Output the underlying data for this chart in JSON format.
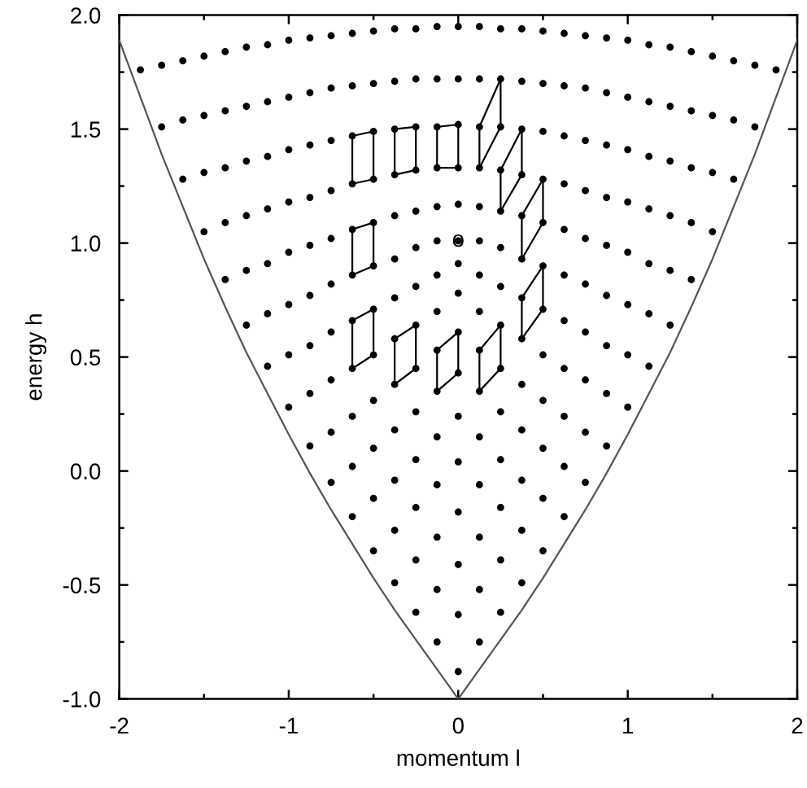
{
  "chart_data": {
    "type": "scatter",
    "xlabel": "momentum l",
    "ylabel": "energy h",
    "marker": "circle",
    "xlim": [
      -2,
      2
    ],
    "ylim": [
      -1,
      2
    ],
    "xticks": [
      -2,
      {
        "value": -1.5,
        "label": null
      },
      -1,
      {
        "value": -0.5,
        "label": null
      },
      0,
      {
        "value": 0.5,
        "label": null
      },
      1,
      {
        "value": 1.5,
        "label": null
      },
      2
    ],
    "yticks": [
      {
        "value": -1,
        "label": "-1.0"
      },
      {
        "value": -0.75,
        "label": null
      },
      -0.5,
      {
        "value": -0.25,
        "label": null
      },
      {
        "value": 0,
        "label": "0.0"
      },
      {
        "value": 0.25,
        "label": null
      },
      0.5,
      {
        "value": 0.75,
        "label": null
      },
      {
        "value": 1,
        "label": "1.0"
      },
      {
        "value": 1.25,
        "label": null
      },
      1.5,
      {
        "value": 1.75,
        "label": null
      },
      {
        "value": 2,
        "label": "2.0"
      }
    ],
    "annotations": [
      {
        "text": "o",
        "x": 0,
        "y": 1.01
      }
    ],
    "series": [
      {
        "type": "line",
        "color": "#555555",
        "marker": "none",
        "x": [
          -2,
          -1.875,
          -1.75,
          -1.625,
          -1.5,
          -1.375,
          -1.25,
          -1.125,
          -1,
          -0.875,
          -0.75,
          -0.625,
          -0.5,
          -0.375,
          -0.25,
          -0.125,
          0,
          0.125,
          0.25,
          0.375,
          0.5,
          0.625,
          0.75,
          0.875,
          1,
          1.125,
          1.25,
          1.375,
          1.5,
          1.625,
          1.75,
          1.875,
          2
        ],
        "values": [
          1.89,
          1.64,
          1.39,
          1.16,
          0.93,
          0.72,
          0.52,
          0.34,
          0.16,
          -0.01,
          -0.17,
          -0.32,
          -0.47,
          -0.61,
          -0.74,
          -0.87,
          -1.0,
          -0.87,
          -0.74,
          -0.61,
          -0.47,
          -0.32,
          -0.17,
          -0.01,
          0.16,
          0.34,
          0.52,
          0.72,
          0.93,
          1.16,
          1.39,
          1.64,
          1.89
        ]
      },
      {
        "color": "#000000",
        "x": [
          0
        ],
        "values": [
          -0.88
        ]
      },
      {
        "color": "#000000",
        "x": [
          -0.125,
          0,
          0.125
        ],
        "values": [
          -0.75,
          -0.63,
          -0.75
        ]
      },
      {
        "color": "#000000",
        "x": [
          -0.25,
          -0.125,
          0,
          0.125,
          0.25
        ],
        "values": [
          -0.62,
          -0.52,
          -0.41,
          -0.52,
          -0.62
        ]
      },
      {
        "color": "#000000",
        "x": [
          -0.375,
          -0.25,
          -0.125,
          0,
          0.125,
          0.25,
          0.375
        ],
        "values": [
          -0.49,
          -0.39,
          -0.29,
          -0.18,
          -0.29,
          -0.39,
          -0.49
        ]
      },
      {
        "color": "#000000",
        "x": [
          -0.5,
          -0.375,
          -0.25,
          -0.125,
          0,
          0.125,
          0.25,
          0.375,
          0.5
        ],
        "values": [
          -0.35,
          -0.26,
          -0.16,
          -0.06,
          0.04,
          -0.06,
          -0.16,
          -0.26,
          -0.35
        ]
      },
      {
        "color": "#000000",
        "x": [
          -0.625,
          -0.5,
          -0.375,
          -0.25,
          -0.125,
          0,
          0.125,
          0.25,
          0.375,
          0.5,
          0.625
        ],
        "values": [
          -0.2,
          -0.12,
          -0.04,
          0.05,
          0.15,
          0.24,
          0.15,
          0.05,
          -0.04,
          -0.12,
          -0.2
        ]
      },
      {
        "color": "#000000",
        "x": [
          -0.75,
          -0.625,
          -0.5,
          -0.375,
          -0.25,
          -0.125,
          0,
          0.125,
          0.25,
          0.375,
          0.5,
          0.625,
          0.75
        ],
        "values": [
          -0.05,
          0.02,
          0.1,
          0.18,
          0.26,
          0.35,
          0.43,
          0.35,
          0.26,
          0.18,
          0.1,
          0.02,
          -0.05
        ]
      },
      {
        "color": "#000000",
        "x": [
          -0.875,
          -0.75,
          -0.625,
          -0.5,
          -0.375,
          -0.25,
          -0.125,
          0,
          0.125,
          0.25,
          0.375,
          0.5,
          0.625,
          0.75,
          0.875
        ],
        "values": [
          0.11,
          0.17,
          0.24,
          0.31,
          0.38,
          0.45,
          0.53,
          0.61,
          0.53,
          0.45,
          0.38,
          0.31,
          0.24,
          0.17,
          0.11
        ]
      },
      {
        "color": "#000000",
        "x": [
          -1,
          -0.875,
          -0.75,
          -0.625,
          -0.5,
          -0.375,
          -0.25,
          -0.125,
          0,
          0.125,
          0.25,
          0.375,
          0.5,
          0.625,
          0.75,
          0.875,
          1
        ],
        "values": [
          0.28,
          0.34,
          0.4,
          0.45,
          0.51,
          0.58,
          0.64,
          0.7,
          0.78,
          0.7,
          0.64,
          0.58,
          0.51,
          0.45,
          0.4,
          0.34,
          0.28
        ]
      },
      {
        "color": "#000000",
        "x": [
          -1.125,
          -1,
          -0.875,
          -0.75,
          -0.625,
          -0.5,
          -0.375,
          -0.25,
          -0.125,
          0,
          0.125,
          0.25,
          0.375,
          0.5,
          0.625,
          0.75,
          0.875,
          1,
          1.125
        ],
        "values": [
          0.46,
          0.51,
          0.55,
          0.61,
          0.66,
          0.71,
          0.76,
          0.81,
          0.86,
          0.91,
          0.86,
          0.81,
          0.76,
          0.71,
          0.66,
          0.61,
          0.55,
          0.51,
          0.46
        ]
      },
      {
        "color": "#000000",
        "x": [
          -1.25,
          -1.125,
          -1,
          -0.875,
          -0.75,
          -0.625,
          -0.5,
          -0.375,
          -0.25,
          -0.125,
          0,
          0.125,
          0.25,
          0.375,
          0.5,
          0.625,
          0.75,
          0.875,
          1,
          1.125,
          1.25
        ],
        "values": [
          0.64,
          0.69,
          0.73,
          0.77,
          0.82,
          0.86,
          0.9,
          0.93,
          0.98,
          1.01,
          1.01,
          1.01,
          0.98,
          0.93,
          0.9,
          0.86,
          0.82,
          0.77,
          0.73,
          0.69,
          0.64
        ]
      },
      {
        "color": "#000000",
        "x": [
          -1.375,
          -1.25,
          -1.125,
          -1,
          -0.875,
          -0.75,
          -0.625,
          -0.5,
          -0.375,
          -0.25,
          -0.125,
          0,
          0.125,
          0.25,
          0.375,
          0.5,
          0.625,
          0.75,
          0.875,
          1,
          1.125,
          1.25,
          1.375
        ],
        "values": [
          0.84,
          0.88,
          0.91,
          0.96,
          0.99,
          1.02,
          1.06,
          1.09,
          1.12,
          1.14,
          1.16,
          1.17,
          1.16,
          1.14,
          1.12,
          1.09,
          1.06,
          1.02,
          0.99,
          0.96,
          0.91,
          0.88,
          0.84
        ]
      },
      {
        "color": "#000000",
        "x": [
          -1.5,
          -1.375,
          -1.25,
          -1.125,
          -1,
          -0.875,
          -0.75,
          -0.625,
          -0.5,
          -0.375,
          -0.25,
          -0.125,
          0,
          0.125,
          0.25,
          0.375,
          0.5,
          0.625,
          0.75,
          0.875,
          1,
          1.125,
          1.25,
          1.375,
          1.5
        ],
        "values": [
          1.05,
          1.09,
          1.12,
          1.15,
          1.18,
          1.2,
          1.23,
          1.26,
          1.28,
          1.3,
          1.32,
          1.33,
          1.33,
          1.33,
          1.32,
          1.3,
          1.28,
          1.26,
          1.23,
          1.2,
          1.18,
          1.15,
          1.12,
          1.09,
          1.05
        ]
      },
      {
        "color": "#000000",
        "x": [
          -1.625,
          -1.5,
          -1.375,
          -1.25,
          -1.125,
          -1,
          -0.875,
          -0.75,
          -0.625,
          -0.5,
          -0.375,
          -0.25,
          -0.125,
          0,
          0.125,
          0.25,
          0.375,
          0.5,
          0.625,
          0.75,
          0.875,
          1,
          1.125,
          1.25,
          1.375,
          1.5,
          1.625
        ],
        "values": [
          1.28,
          1.31,
          1.33,
          1.36,
          1.38,
          1.41,
          1.43,
          1.45,
          1.47,
          1.49,
          1.5,
          1.51,
          1.51,
          1.52,
          1.51,
          1.51,
          1.5,
          1.49,
          1.47,
          1.45,
          1.43,
          1.41,
          1.38,
          1.36,
          1.33,
          1.31,
          1.28
        ]
      },
      {
        "color": "#000000",
        "x": [
          -1.75,
          -1.625,
          -1.5,
          -1.375,
          -1.25,
          -1.125,
          -1,
          -0.875,
          -0.75,
          -0.625,
          -0.5,
          -0.375,
          -0.25,
          -0.125,
          0,
          0.125,
          0.25,
          0.375,
          0.5,
          0.625,
          0.75,
          0.875,
          1,
          1.125,
          1.25,
          1.375,
          1.5,
          1.625,
          1.75
        ],
        "values": [
          1.51,
          1.54,
          1.56,
          1.58,
          1.6,
          1.62,
          1.64,
          1.66,
          1.68,
          1.69,
          1.7,
          1.71,
          1.72,
          1.72,
          1.72,
          1.72,
          1.72,
          1.71,
          1.7,
          1.69,
          1.68,
          1.66,
          1.64,
          1.62,
          1.6,
          1.58,
          1.56,
          1.54,
          1.51
        ]
      },
      {
        "color": "#000000",
        "x": [
          -1.875,
          -1.75,
          -1.625,
          -1.5,
          -1.375,
          -1.25,
          -1.125,
          -1,
          -0.875,
          -0.75,
          -0.625,
          -0.5,
          -0.375,
          -0.25,
          -0.125,
          0,
          0.125,
          0.25,
          0.375,
          0.5,
          0.625,
          0.75,
          0.875,
          1,
          1.125,
          1.25,
          1.375,
          1.5,
          1.625,
          1.75,
          1.875
        ],
        "values": [
          1.76,
          1.78,
          1.8,
          1.82,
          1.84,
          1.86,
          1.87,
          1.89,
          1.9,
          1.91,
          1.92,
          1.93,
          1.94,
          1.94,
          1.95,
          1.95,
          1.95,
          1.94,
          1.94,
          1.93,
          1.92,
          1.91,
          1.9,
          1.89,
          1.87,
          1.86,
          1.84,
          1.82,
          1.8,
          1.78,
          1.76
        ]
      },
      {
        "type": "line",
        "color": "#000000",
        "marker": "none",
        "x": [
          -0.625,
          -0.625,
          -0.5,
          -0.5
        ],
        "values": [
          1.26,
          1.47,
          1.49,
          1.28
        ]
      },
      {
        "type": "line",
        "color": "#000000",
        "marker": "none",
        "x": [
          -0.625,
          -0.5
        ],
        "values": [
          1.26,
          1.28
        ]
      },
      {
        "type": "line",
        "color": "#000000",
        "marker": "none",
        "x": [
          -0.375,
          -0.375,
          -0.25,
          -0.25
        ],
        "values": [
          1.3,
          1.5,
          1.51,
          1.32
        ]
      },
      {
        "type": "line",
        "color": "#000000",
        "marker": "none",
        "x": [
          -0.375,
          -0.25
        ],
        "values": [
          1.3,
          1.32
        ]
      },
      {
        "type": "line",
        "color": "#000000",
        "marker": "none",
        "x": [
          -0.125,
          -0.125,
          0,
          0
        ],
        "values": [
          1.33,
          1.51,
          1.52,
          1.33
        ]
      },
      {
        "type": "line",
        "color": "#000000",
        "marker": "none",
        "x": [
          -0.125,
          0
        ],
        "values": [
          1.33,
          1.33
        ]
      },
      {
        "type": "line",
        "color": "#000000",
        "marker": "none",
        "x": [
          -0.625,
          -0.625,
          -0.5,
          -0.5
        ],
        "values": [
          0.86,
          1.06,
          1.09,
          0.9
        ]
      },
      {
        "type": "line",
        "color": "#000000",
        "marker": "none",
        "x": [
          -0.625,
          -0.5
        ],
        "values": [
          0.86,
          0.9
        ]
      },
      {
        "type": "line",
        "color": "#000000",
        "marker": "none",
        "x": [
          -0.625,
          -0.625,
          -0.5,
          -0.5
        ],
        "values": [
          0.45,
          0.66,
          0.71,
          0.51
        ]
      },
      {
        "type": "line",
        "color": "#000000",
        "marker": "none",
        "x": [
          -0.625,
          -0.5
        ],
        "values": [
          0.45,
          0.51
        ]
      },
      {
        "type": "line",
        "color": "#000000",
        "marker": "none",
        "x": [
          -0.375,
          -0.375,
          -0.25,
          -0.25
        ],
        "values": [
          0.38,
          0.58,
          0.64,
          0.45
        ]
      },
      {
        "type": "line",
        "color": "#000000",
        "marker": "none",
        "x": [
          -0.375,
          -0.25
        ],
        "values": [
          0.38,
          0.45
        ]
      },
      {
        "type": "line",
        "color": "#000000",
        "marker": "none",
        "x": [
          -0.125,
          -0.125,
          0,
          0
        ],
        "values": [
          0.35,
          0.53,
          0.61,
          0.43
        ]
      },
      {
        "type": "line",
        "color": "#000000",
        "marker": "none",
        "x": [
          -0.125,
          0
        ],
        "values": [
          0.35,
          0.43
        ]
      },
      {
        "type": "line",
        "color": "#000000",
        "marker": "none",
        "x": [
          0.125,
          0.125,
          0.25,
          0.25
        ],
        "values": [
          1.33,
          1.51,
          1.72,
          1.51
        ]
      },
      {
        "type": "line",
        "color": "#000000",
        "marker": "none",
        "x": [
          0.125,
          0.25
        ],
        "values": [
          1.33,
          1.51
        ]
      },
      {
        "type": "line",
        "color": "#000000",
        "marker": "none",
        "x": [
          0.25,
          0.25,
          0.375,
          0.375
        ],
        "values": [
          1.14,
          1.32,
          1.5,
          1.3
        ]
      },
      {
        "type": "line",
        "color": "#000000",
        "marker": "none",
        "x": [
          0.25,
          0.375
        ],
        "values": [
          1.14,
          1.3
        ]
      },
      {
        "type": "line",
        "color": "#000000",
        "marker": "none",
        "x": [
          0.375,
          0.375,
          0.5,
          0.5
        ],
        "values": [
          0.93,
          1.12,
          1.28,
          1.09
        ]
      },
      {
        "type": "line",
        "color": "#000000",
        "marker": "none",
        "x": [
          0.375,
          0.5
        ],
        "values": [
          0.93,
          1.09
        ]
      },
      {
        "type": "line",
        "color": "#000000",
        "marker": "none",
        "x": [
          0.375,
          0.375,
          0.5,
          0.5
        ],
        "values": [
          0.58,
          0.76,
          0.9,
          0.71
        ]
      },
      {
        "type": "line",
        "color": "#000000",
        "marker": "none",
        "x": [
          0.375,
          0.5
        ],
        "values": [
          0.58,
          0.71
        ]
      },
      {
        "type": "line",
        "color": "#000000",
        "marker": "none",
        "x": [
          0.125,
          0.125,
          0.25,
          0.25
        ],
        "values": [
          0.35,
          0.53,
          0.64,
          0.45
        ]
      },
      {
        "type": "line",
        "color": "#000000",
        "marker": "none",
        "x": [
          0.125,
          0.25
        ],
        "values": [
          0.35,
          0.45
        ]
      }
    ]
  }
}
